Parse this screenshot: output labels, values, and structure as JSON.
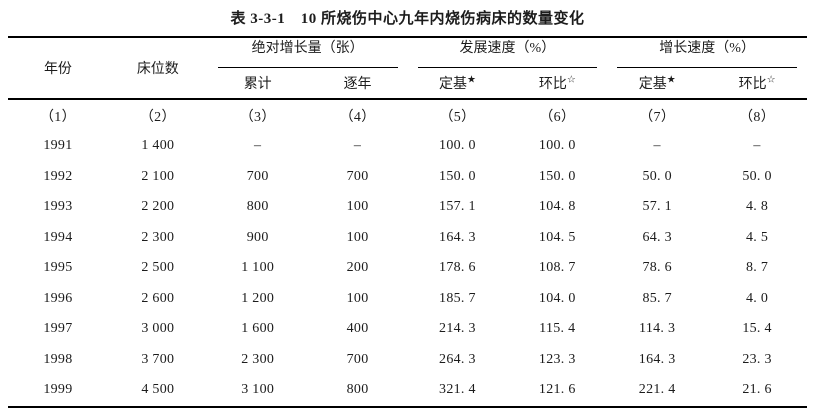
{
  "title": "表 3-3-1　10 所烧伤中心九年内烧伤病床的数量变化",
  "table": {
    "headers": {
      "year": "年份",
      "beds": "床位数",
      "abs_growth_group": "绝对增长量（张）",
      "dev_speed_group": "发展速度（%）",
      "growth_speed_group": "增长速度（%）",
      "cumulative": "累计",
      "yearly": "逐年",
      "fixed_base": "定基",
      "fixed_base_mark": "★",
      "chain": "环比",
      "chain_mark": "☆"
    },
    "column_numbers": [
      "（1）",
      "（2）",
      "（3）",
      "（4）",
      "（5）",
      "（6）",
      "（7）",
      "（8）"
    ],
    "rows": [
      [
        "1991",
        "1 400",
        "–",
        "–",
        "100. 0",
        "100. 0",
        "–",
        "–"
      ],
      [
        "1992",
        "2 100",
        "700",
        "700",
        "150. 0",
        "150. 0",
        "50. 0",
        "50. 0"
      ],
      [
        "1993",
        "2 200",
        "800",
        "100",
        "157. 1",
        "104. 8",
        "57. 1",
        "4. 8"
      ],
      [
        "1994",
        "2 300",
        "900",
        "100",
        "164. 3",
        "104. 5",
        "64. 3",
        "4. 5"
      ],
      [
        "1995",
        "2 500",
        "1 100",
        "200",
        "178. 6",
        "108. 7",
        "78. 6",
        "8. 7"
      ],
      [
        "1996",
        "2 600",
        "1 200",
        "100",
        "185. 7",
        "104. 0",
        "85. 7",
        "4. 0"
      ],
      [
        "1997",
        "3 000",
        "1 600",
        "400",
        "214. 3",
        "115. 4",
        "114. 3",
        "15. 4"
      ],
      [
        "1998",
        "3 700",
        "2 300",
        "700",
        "264. 3",
        "123. 3",
        "164. 3",
        "23. 3"
      ],
      [
        "1999",
        "4 500",
        "3 100",
        "800",
        "321. 4",
        "121. 6",
        "221. 4",
        "21. 6"
      ]
    ]
  },
  "colors": {
    "text": "#1c1c1c",
    "rule": "#000000",
    "background": "#ffffff"
  }
}
